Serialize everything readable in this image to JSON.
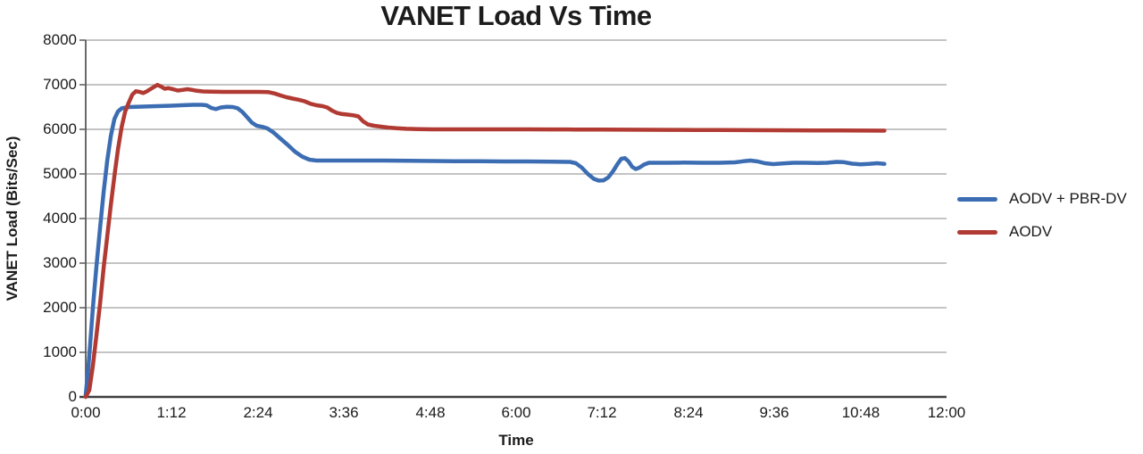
{
  "title": "VANET Load Vs Time",
  "colors": {
    "series_blue": "#3C6DB3",
    "series_red": "#B13A33",
    "gridline": "#A0A0A0",
    "axis": "#595959",
    "axis_bottom": "#3F3F3F",
    "text": "#1A1A1A"
  },
  "chart_data": {
    "type": "line",
    "title": "VANET Load Vs Time",
    "xlabel": "Time",
    "ylabel": "VANET Load (Bits/Sec)",
    "x_unit": "minutes (labels shown as h:mm)",
    "xlim": [
      0,
      720
    ],
    "ylim": [
      0,
      8000
    ],
    "xtick_minutes": [
      0,
      72,
      144,
      216,
      288,
      360,
      432,
      504,
      576,
      648,
      720
    ],
    "xtick_labels": [
      "0:00",
      "1:12",
      "2:24",
      "3:36",
      "4:48",
      "6:00",
      "7:12",
      "8:24",
      "9:36",
      "10:48",
      "12:00"
    ],
    "yticks": [
      8000,
      7000,
      6000,
      5000,
      4000,
      3000,
      2000,
      1000,
      0
    ],
    "ytick_labels": [
      "8000",
      "7000",
      "6000",
      "5000",
      "4000",
      "3000",
      "2000",
      "1000",
      "0"
    ],
    "grid": "horizontal",
    "legend_position": "right",
    "series": [
      {
        "name": "AODV + PBR-DV",
        "color": "#3C6DB3",
        "points": [
          [
            0,
            50
          ],
          [
            2,
            600
          ],
          [
            4,
            1300
          ],
          [
            6,
            2000
          ],
          [
            9,
            2950
          ],
          [
            12,
            3800
          ],
          [
            15,
            4600
          ],
          [
            18,
            5300
          ],
          [
            21,
            5850
          ],
          [
            24,
            6230
          ],
          [
            27,
            6400
          ],
          [
            30,
            6470
          ],
          [
            36,
            6500
          ],
          [
            48,
            6510
          ],
          [
            60,
            6520
          ],
          [
            72,
            6530
          ],
          [
            80,
            6540
          ],
          [
            90,
            6550
          ],
          [
            97,
            6550
          ],
          [
            101,
            6540
          ],
          [
            105,
            6480
          ],
          [
            109,
            6455
          ],
          [
            113,
            6490
          ],
          [
            118,
            6505
          ],
          [
            123,
            6500
          ],
          [
            127,
            6475
          ],
          [
            131,
            6390
          ],
          [
            135,
            6270
          ],
          [
            139,
            6150
          ],
          [
            143,
            6080
          ],
          [
            148,
            6055
          ],
          [
            152,
            6020
          ],
          [
            157,
            5930
          ],
          [
            163,
            5790
          ],
          [
            169,
            5650
          ],
          [
            175,
            5500
          ],
          [
            181,
            5390
          ],
          [
            187,
            5320
          ],
          [
            193,
            5300
          ],
          [
            210,
            5300
          ],
          [
            230,
            5300
          ],
          [
            250,
            5300
          ],
          [
            270,
            5295
          ],
          [
            290,
            5290
          ],
          [
            310,
            5285
          ],
          [
            330,
            5285
          ],
          [
            350,
            5280
          ],
          [
            370,
            5280
          ],
          [
            390,
            5275
          ],
          [
            405,
            5270
          ],
          [
            410,
            5240
          ],
          [
            415,
            5140
          ],
          [
            420,
            5000
          ],
          [
            425,
            4890
          ],
          [
            429,
            4850
          ],
          [
            433,
            4855
          ],
          [
            437,
            4920
          ],
          [
            441,
            5060
          ],
          [
            445,
            5230
          ],
          [
            448,
            5340
          ],
          [
            451,
            5355
          ],
          [
            454,
            5280
          ],
          [
            457,
            5160
          ],
          [
            460,
            5110
          ],
          [
            463,
            5140
          ],
          [
            467,
            5210
          ],
          [
            471,
            5250
          ],
          [
            485,
            5250
          ],
          [
            500,
            5255
          ],
          [
            515,
            5250
          ],
          [
            530,
            5250
          ],
          [
            543,
            5260
          ],
          [
            550,
            5285
          ],
          [
            556,
            5300
          ],
          [
            562,
            5280
          ],
          [
            568,
            5240
          ],
          [
            575,
            5220
          ],
          [
            583,
            5235
          ],
          [
            592,
            5250
          ],
          [
            602,
            5250
          ],
          [
            612,
            5245
          ],
          [
            620,
            5250
          ],
          [
            628,
            5270
          ],
          [
            634,
            5265
          ],
          [
            641,
            5230
          ],
          [
            648,
            5215
          ],
          [
            655,
            5225
          ],
          [
            662,
            5240
          ],
          [
            668,
            5225
          ]
        ]
      },
      {
        "name": "AODV",
        "color": "#B13A33",
        "points": [
          [
            0,
            0
          ],
          [
            3,
            150
          ],
          [
            6,
            700
          ],
          [
            9,
            1400
          ],
          [
            12,
            2100
          ],
          [
            15,
            2900
          ],
          [
            18,
            3600
          ],
          [
            21,
            4300
          ],
          [
            24,
            4950
          ],
          [
            27,
            5550
          ],
          [
            30,
            6050
          ],
          [
            33,
            6400
          ],
          [
            36,
            6600
          ],
          [
            39,
            6780
          ],
          [
            42,
            6855
          ],
          [
            45,
            6840
          ],
          [
            48,
            6815
          ],
          [
            51,
            6850
          ],
          [
            54,
            6900
          ],
          [
            57,
            6950
          ],
          [
            60,
            6995
          ],
          [
            63,
            6960
          ],
          [
            66,
            6910
          ],
          [
            69,
            6925
          ],
          [
            73,
            6900
          ],
          [
            77,
            6870
          ],
          [
            81,
            6885
          ],
          [
            85,
            6900
          ],
          [
            89,
            6885
          ],
          [
            93,
            6865
          ],
          [
            98,
            6850
          ],
          [
            105,
            6845
          ],
          [
            115,
            6840
          ],
          [
            130,
            6840
          ],
          [
            145,
            6840
          ],
          [
            153,
            6835
          ],
          [
            158,
            6805
          ],
          [
            163,
            6760
          ],
          [
            168,
            6720
          ],
          [
            173,
            6690
          ],
          [
            178,
            6665
          ],
          [
            183,
            6630
          ],
          [
            188,
            6575
          ],
          [
            193,
            6540
          ],
          [
            198,
            6520
          ],
          [
            202,
            6490
          ],
          [
            206,
            6420
          ],
          [
            210,
            6370
          ],
          [
            214,
            6345
          ],
          [
            219,
            6330
          ],
          [
            224,
            6315
          ],
          [
            228,
            6290
          ],
          [
            232,
            6180
          ],
          [
            236,
            6110
          ],
          [
            241,
            6080
          ],
          [
            247,
            6060
          ],
          [
            253,
            6040
          ],
          [
            260,
            6025
          ],
          [
            268,
            6012
          ],
          [
            278,
            6005
          ],
          [
            290,
            6000
          ],
          [
            310,
            6000
          ],
          [
            330,
            6000
          ],
          [
            350,
            6000
          ],
          [
            370,
            6000
          ],
          [
            390,
            5998
          ],
          [
            410,
            5996
          ],
          [
            430,
            5995
          ],
          [
            450,
            5993
          ],
          [
            470,
            5990
          ],
          [
            490,
            5988
          ],
          [
            510,
            5986
          ],
          [
            530,
            5984
          ],
          [
            550,
            5982
          ],
          [
            570,
            5980
          ],
          [
            590,
            5978
          ],
          [
            610,
            5976
          ],
          [
            630,
            5974
          ],
          [
            650,
            5972
          ],
          [
            668,
            5970
          ]
        ]
      }
    ]
  }
}
